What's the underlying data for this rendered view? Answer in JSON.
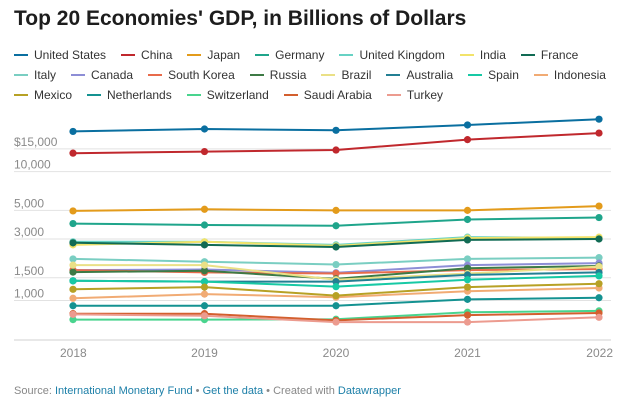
{
  "footer": {
    "source_label": "Source:",
    "source_link": "International Monetary Fund",
    "sep1": "•",
    "get_data": "Get the data",
    "sep2": "•",
    "created_with": "Created with",
    "tool": "Datawrapper"
  },
  "chart_data": {
    "type": "line",
    "title": "Top 20 Economies' GDP, in Billions of Dollars",
    "x": [
      "2018",
      "2019",
      "2020",
      "2021",
      "2022"
    ],
    "y_scale": "log",
    "ylim": [
      530,
      29000
    ],
    "y_ticks": [
      1000,
      1500,
      3000,
      5000,
      10000,
      15000
    ],
    "y_tick_labels": [
      "1,000",
      "1,500",
      "3,000",
      "5,000",
      "10,000",
      "$15,000"
    ],
    "grid": "horizontal",
    "legend_position": "top",
    "series": [
      {
        "name": "United States",
        "color": "#0a6fa0",
        "values": [
          20500,
          21400,
          20900,
          23000,
          25500
        ]
      },
      {
        "name": "China",
        "color": "#c0282d",
        "values": [
          13900,
          14300,
          14700,
          17700,
          19900
        ]
      },
      {
        "name": "Japan",
        "color": "#e39b1b",
        "values": [
          4950,
          5100,
          5000,
          5000,
          5400
        ]
      },
      {
        "name": "Germany",
        "color": "#1fa58b",
        "values": [
          3950,
          3850,
          3800,
          4250,
          4400
        ]
      },
      {
        "name": "United Kingdom",
        "color": "#67d2c4",
        "values": [
          2850,
          2850,
          2700,
          3100,
          3050
        ]
      },
      {
        "name": "India",
        "color": "#f2e36a",
        "values": [
          2700,
          2850,
          2650,
          3050,
          3100
        ]
      },
      {
        "name": "France",
        "color": "#116b54",
        "values": [
          2800,
          2700,
          2600,
          2950,
          3000
        ]
      },
      {
        "name": "Italy",
        "color": "#7acec2",
        "values": [
          2100,
          2000,
          1900,
          2100,
          2150
        ]
      },
      {
        "name": "Canada",
        "color": "#8d8ed6",
        "values": [
          1720,
          1740,
          1640,
          1880,
          1950
        ]
      },
      {
        "name": "South Korea",
        "color": "#e86b4b",
        "values": [
          1720,
          1650,
          1620,
          1720,
          1750
        ]
      },
      {
        "name": "Russia",
        "color": "#3d7a45",
        "values": [
          1660,
          1700,
          1470,
          1780,
          1850
        ]
      },
      {
        "name": "Brazil",
        "color": "#eae086",
        "values": [
          1880,
          1880,
          1450,
          1620,
          1830
        ]
      },
      {
        "name": "Australia",
        "color": "#237f93",
        "values": [
          1420,
          1400,
          1400,
          1580,
          1650
        ]
      },
      {
        "name": "Spain",
        "color": "#17c9a5",
        "values": [
          1420,
          1400,
          1280,
          1450,
          1550
        ]
      },
      {
        "name": "Indonesia",
        "color": "#f1ab74",
        "values": [
          1040,
          1120,
          1060,
          1180,
          1250
        ]
      },
      {
        "name": "Mexico",
        "color": "#b7a125",
        "values": [
          1220,
          1270,
          1090,
          1270,
          1350
        ]
      },
      {
        "name": "Netherlands",
        "color": "#149291",
        "values": [
          910,
          910,
          910,
          1020,
          1050
        ]
      },
      {
        "name": "Switzerland",
        "color": "#49d48e",
        "values": [
          710,
          710,
          715,
          810,
          830
        ]
      },
      {
        "name": "Saudi Arabia",
        "color": "#d35f2e",
        "values": [
          790,
          790,
          700,
          770,
          800
        ]
      },
      {
        "name": "Turkey",
        "color": "#ec9b8f",
        "values": [
          780,
          760,
          680,
          680,
          740
        ]
      }
    ]
  }
}
